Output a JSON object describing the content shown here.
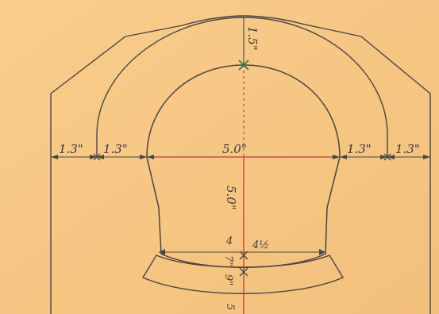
{
  "dimensions": {
    "left_outer": "1.3\"",
    "left_ring": "1.3\"",
    "span": "5.0\"",
    "right_ring": "1.3\"",
    "right_outer": "1.3\"",
    "crown": "1.5\"",
    "rise": "5.0\"",
    "invert_depth_left": "4",
    "invert_depth_right": "4½",
    "invert_small_a": "7\"",
    "invert_small_b": "9\"",
    "bottom_fragment": "5"
  },
  "colors": {
    "paper": "#f7c886",
    "line": "#4a4540",
    "centerline": "#c03a3a",
    "crown_mark": "#2f7d3a"
  }
}
